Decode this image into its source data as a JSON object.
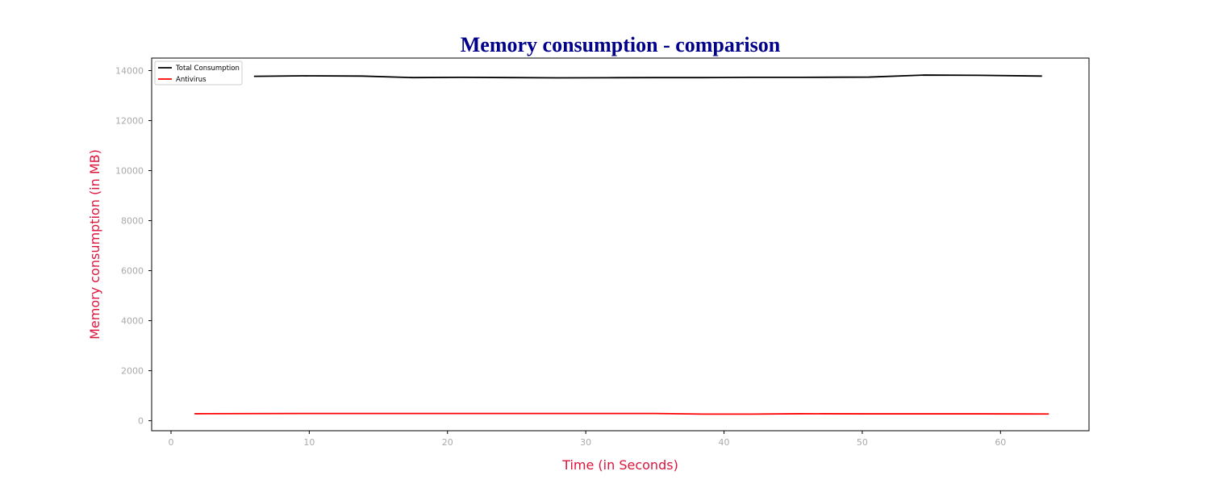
{
  "chart_data": {
    "type": "line",
    "title": "Memory consumption - comparison",
    "xlabel": "Time (in Seconds)",
    "ylabel": "Memory consumption (in MB)",
    "xlim": [
      -1.4,
      66.4
    ],
    "ylim": [
      -400,
      14500
    ],
    "xticks": [
      0,
      10,
      20,
      30,
      40,
      50,
      60
    ],
    "yticks": [
      0,
      2000,
      4000,
      6000,
      8000,
      10000,
      12000,
      14000
    ],
    "grid": false,
    "legend_position": "top-left",
    "series": [
      {
        "name": "Total Consumption",
        "color": "#000000",
        "points": [
          [
            6.0,
            13770
          ],
          [
            9.5,
            13790
          ],
          [
            13.8,
            13780
          ],
          [
            17.5,
            13720
          ],
          [
            21.0,
            13730
          ],
          [
            24.5,
            13720
          ],
          [
            28.0,
            13710
          ],
          [
            31.5,
            13715
          ],
          [
            35.0,
            13720
          ],
          [
            38.5,
            13720
          ],
          [
            42.0,
            13730
          ],
          [
            45.5,
            13730
          ],
          [
            50.5,
            13740
          ],
          [
            54.5,
            13820
          ],
          [
            58.5,
            13810
          ],
          [
            63.0,
            13780
          ]
        ]
      },
      {
        "name": "Antivirus",
        "color": "#ff0000",
        "points": [
          [
            1.7,
            280
          ],
          [
            6.0,
            285
          ],
          [
            9.5,
            290
          ],
          [
            13.8,
            290
          ],
          [
            17.5,
            290
          ],
          [
            21.0,
            290
          ],
          [
            24.5,
            290
          ],
          [
            28.0,
            290
          ],
          [
            31.5,
            290
          ],
          [
            35.0,
            290
          ],
          [
            38.5,
            265
          ],
          [
            42.0,
            265
          ],
          [
            45.5,
            280
          ],
          [
            50.5,
            275
          ],
          [
            54.5,
            275
          ],
          [
            58.5,
            275
          ],
          [
            63.5,
            270
          ]
        ]
      }
    ]
  },
  "style": {
    "title_color": "#00008b",
    "axis_label_color": "#dc143c",
    "tick_label_color": "#aaaaaa",
    "tick_mark_color": "#000000",
    "frame_color": "#000000"
  }
}
